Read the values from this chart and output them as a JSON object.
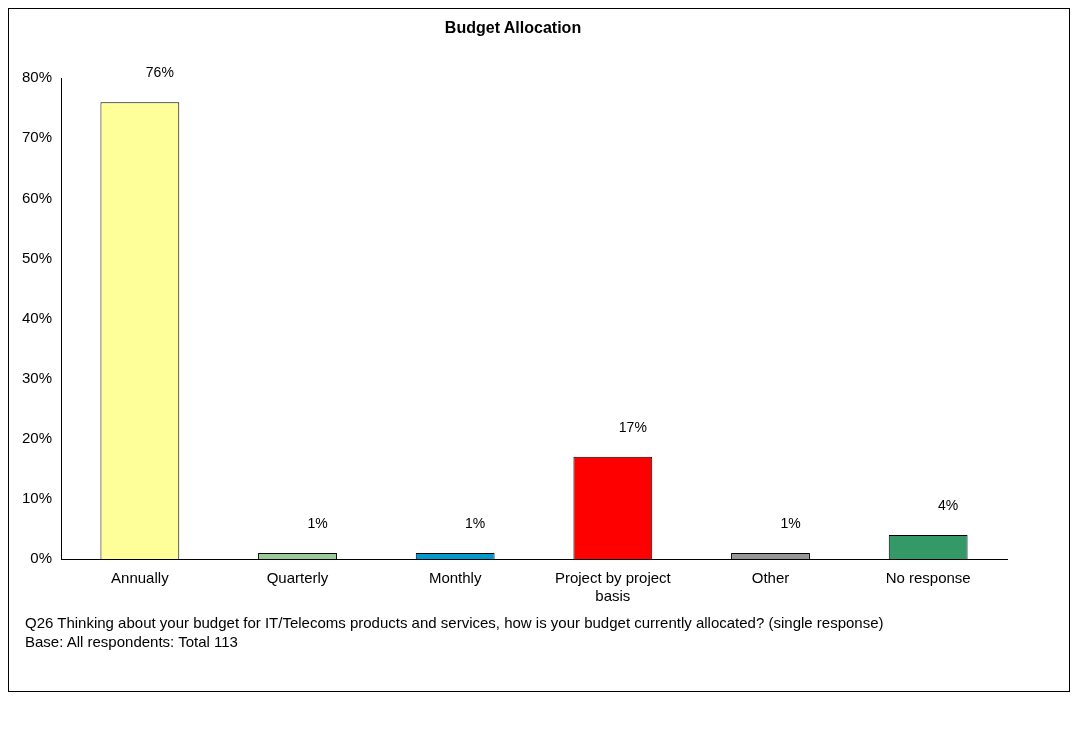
{
  "chart_data": {
    "type": "bar",
    "title": "Budget Allocation",
    "categories": [
      "Annually",
      "Quarterly",
      "Monthly",
      "Project by project basis",
      "Other",
      "No response"
    ],
    "values": [
      76,
      1,
      1,
      17,
      1,
      4
    ],
    "value_labels": [
      "76%",
      "1%",
      "1%",
      "17%",
      "1%",
      "4%"
    ],
    "colors": [
      "#ffff99",
      "#99cc99",
      "#0099cc",
      "#ff0000",
      "#969696",
      "#339966"
    ],
    "ylim": [
      0,
      80
    ],
    "yticks": [
      {
        "value": 0,
        "label": "0%"
      },
      {
        "value": 10,
        "label": "10%"
      },
      {
        "value": 20,
        "label": "20%"
      },
      {
        "value": 30,
        "label": "30%"
      },
      {
        "value": 40,
        "label": "40%"
      },
      {
        "value": 50,
        "label": "50%"
      },
      {
        "value": 60,
        "label": "60%"
      },
      {
        "value": 70,
        "label": "70%"
      },
      {
        "value": 80,
        "label": "80%"
      }
    ],
    "grid": false,
    "legend": false,
    "annotations": [
      "Q26 Thinking about your budget for IT/Telecoms products and services, how is your budget currently allocated?  (single response)",
      "Base: All respondents: Total 113"
    ]
  }
}
